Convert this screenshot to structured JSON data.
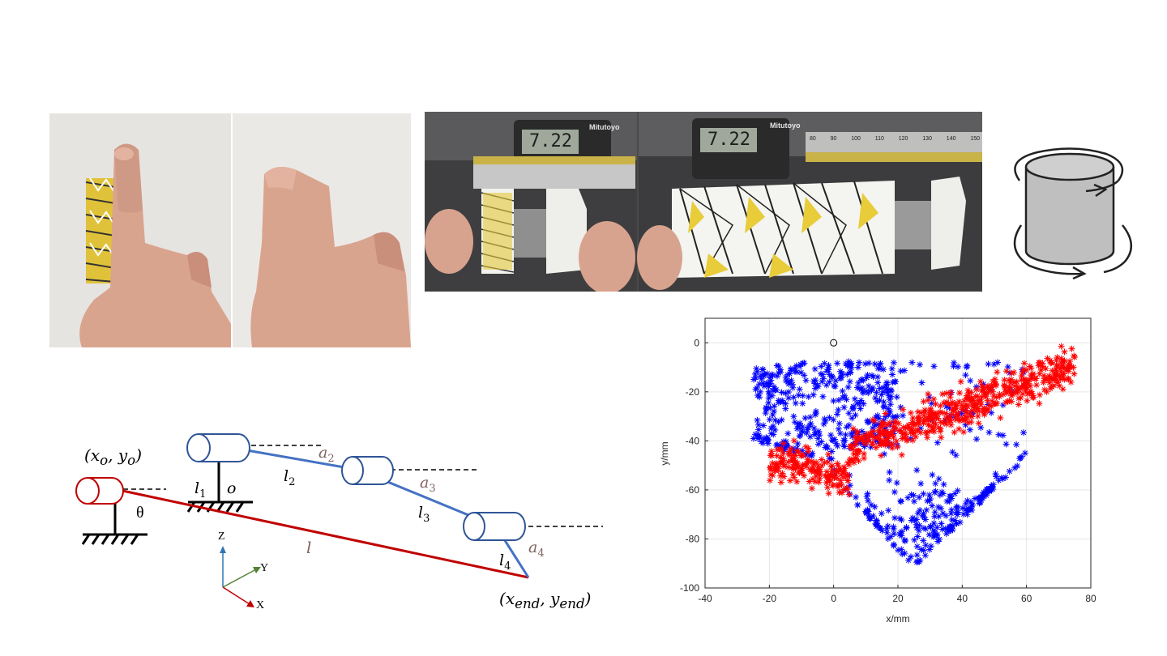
{
  "caliper_photos": {
    "brand": "Mitutoyo",
    "reading_left": "7.22",
    "reading_right": "7.22",
    "scale_ticks": [
      "80",
      "90",
      "100",
      "110",
      "120",
      "130",
      "140",
      "150"
    ]
  },
  "kinematic_diagram": {
    "origin_label": "(x_o, y_o)",
    "end_label": "(x_end, y_end)",
    "theta": "θ",
    "o": "o",
    "l1": "l1",
    "l2": "l2",
    "l3": "l3",
    "l4": "l4",
    "l": "l",
    "a2": "a2",
    "a3": "a3",
    "a4": "a4",
    "axes": {
      "z": "Z",
      "y": "Y",
      "x": "X"
    },
    "colors": {
      "links": "#4472c4",
      "virtual_link": "#c00000",
      "base_cyl": "#c00000",
      "joint_cyl": "#2f5597"
    }
  },
  "chart_data": {
    "type": "scatter",
    "xlabel": "x/mm",
    "ylabel": "y/mm",
    "xlim": [
      -40,
      80
    ],
    "ylim": [
      -100,
      10
    ],
    "xticks": [
      -40,
      -20,
      0,
      20,
      40,
      60,
      80
    ],
    "yticks": [
      0,
      -20,
      -40,
      -60,
      -80,
      -100
    ],
    "grid": true,
    "marker": "asterisk",
    "origin_marker": {
      "x": 0,
      "y": 0,
      "symbol": "circle"
    },
    "series": [
      {
        "color": "#0000ff",
        "point_count": 700,
        "x_range": [
          -25,
          60
        ],
        "y_range": [
          -93,
          -5
        ]
      },
      {
        "color": "#ff0000",
        "point_count": 650,
        "x_range": [
          -20,
          75
        ],
        "y_range": [
          -73,
          4
        ]
      }
    ]
  }
}
